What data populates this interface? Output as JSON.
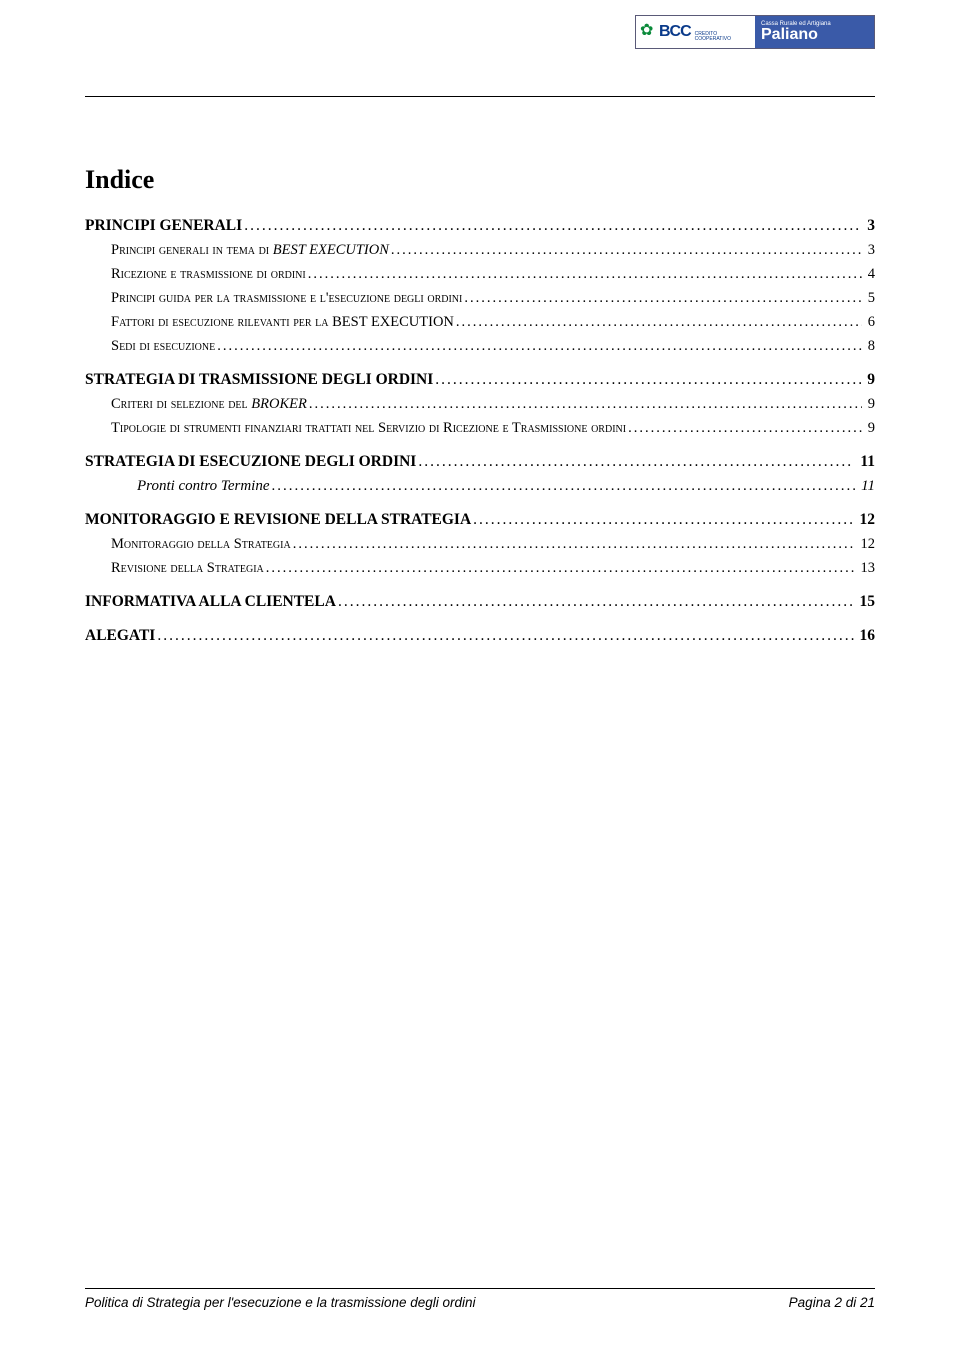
{
  "logo": {
    "bcc_text": "BCC",
    "credit_text": "CREDITO COOPERATIVO",
    "right_top": "Cassa Rurale ed Artigiana",
    "right_main": "Paliano",
    "colors": {
      "left_bg": "#ffffff",
      "right_bg": "#3a5aa8",
      "bcc_color": "#0a3a8a",
      "flower_color": "#0a8a3a",
      "border": "#5a5a78"
    }
  },
  "title": "Indice",
  "toc": [
    {
      "level": "l1",
      "label_html": "PRINCIPI GENERALI",
      "page": "3"
    },
    {
      "level": "l2",
      "label_html": "P<span class='sc'>rincipi generali in tema di </span><span class='ital'>BEST EXECUTION</span>",
      "page": "3"
    },
    {
      "level": "l2",
      "label_html": "R<span class='sc'>icezione e trasmissione di ordini</span>",
      "page": "4"
    },
    {
      "level": "l2",
      "label_html": "P<span class='sc'>rincipi guida per la trasmissione e l'esecuzione degli ordini</span>",
      "page": "5"
    },
    {
      "level": "l2",
      "label_html": "F<span class='sc'>attori di esecuzione rilevanti per la </span>BEST EXECUTION",
      "page": "6"
    },
    {
      "level": "l2",
      "label_html": "S<span class='sc'>edi di esecuzione</span>",
      "page": "8"
    },
    {
      "level": "l1",
      "label_html": "STRATEGIA DI TRASMISSIONE DEGLI ORDINI",
      "page": "9"
    },
    {
      "level": "l2",
      "label_html": "C<span class='sc'>riteri di selezione del </span><span class='ital'>BROKER</span>",
      "page": "9"
    },
    {
      "level": "l2",
      "label_html": "T<span class='sc'>ipologie di strumenti finanziari trattati nel Servizio di Ricezione e Trasmissione ordini</span>",
      "page": "9"
    },
    {
      "level": "l1",
      "label_html": "STRATEGIA DI ESECUZIONE DEGLI ORDINI",
      "page": "11"
    },
    {
      "level": "l3",
      "label_html": "Pronti contro Termine",
      "page": "11"
    },
    {
      "level": "l1",
      "label_html": "MONITORAGGIO E REVISIONE DELLA STRATEGIA",
      "page": "12"
    },
    {
      "level": "l2",
      "label_html": "M<span class='sc'>onitoraggio della Strategia</span>",
      "page": "12"
    },
    {
      "level": "l2",
      "label_html": "R<span class='sc'>evisione della Strategia</span>",
      "page": "13"
    },
    {
      "level": "l1",
      "label_html": "INFORMATIVA ALLA CLIENTELA",
      "page": "15"
    },
    {
      "level": "l1",
      "label_html": "ALEGATI",
      "page": "16"
    }
  ],
  "footer": {
    "left": "Politica di Strategia per  l'esecuzione e la trasmissione degli ordini",
    "right": "Pagina 2 di 21"
  },
  "colors": {
    "background": "#ffffff",
    "text": "#000000",
    "rule": "#000000"
  }
}
